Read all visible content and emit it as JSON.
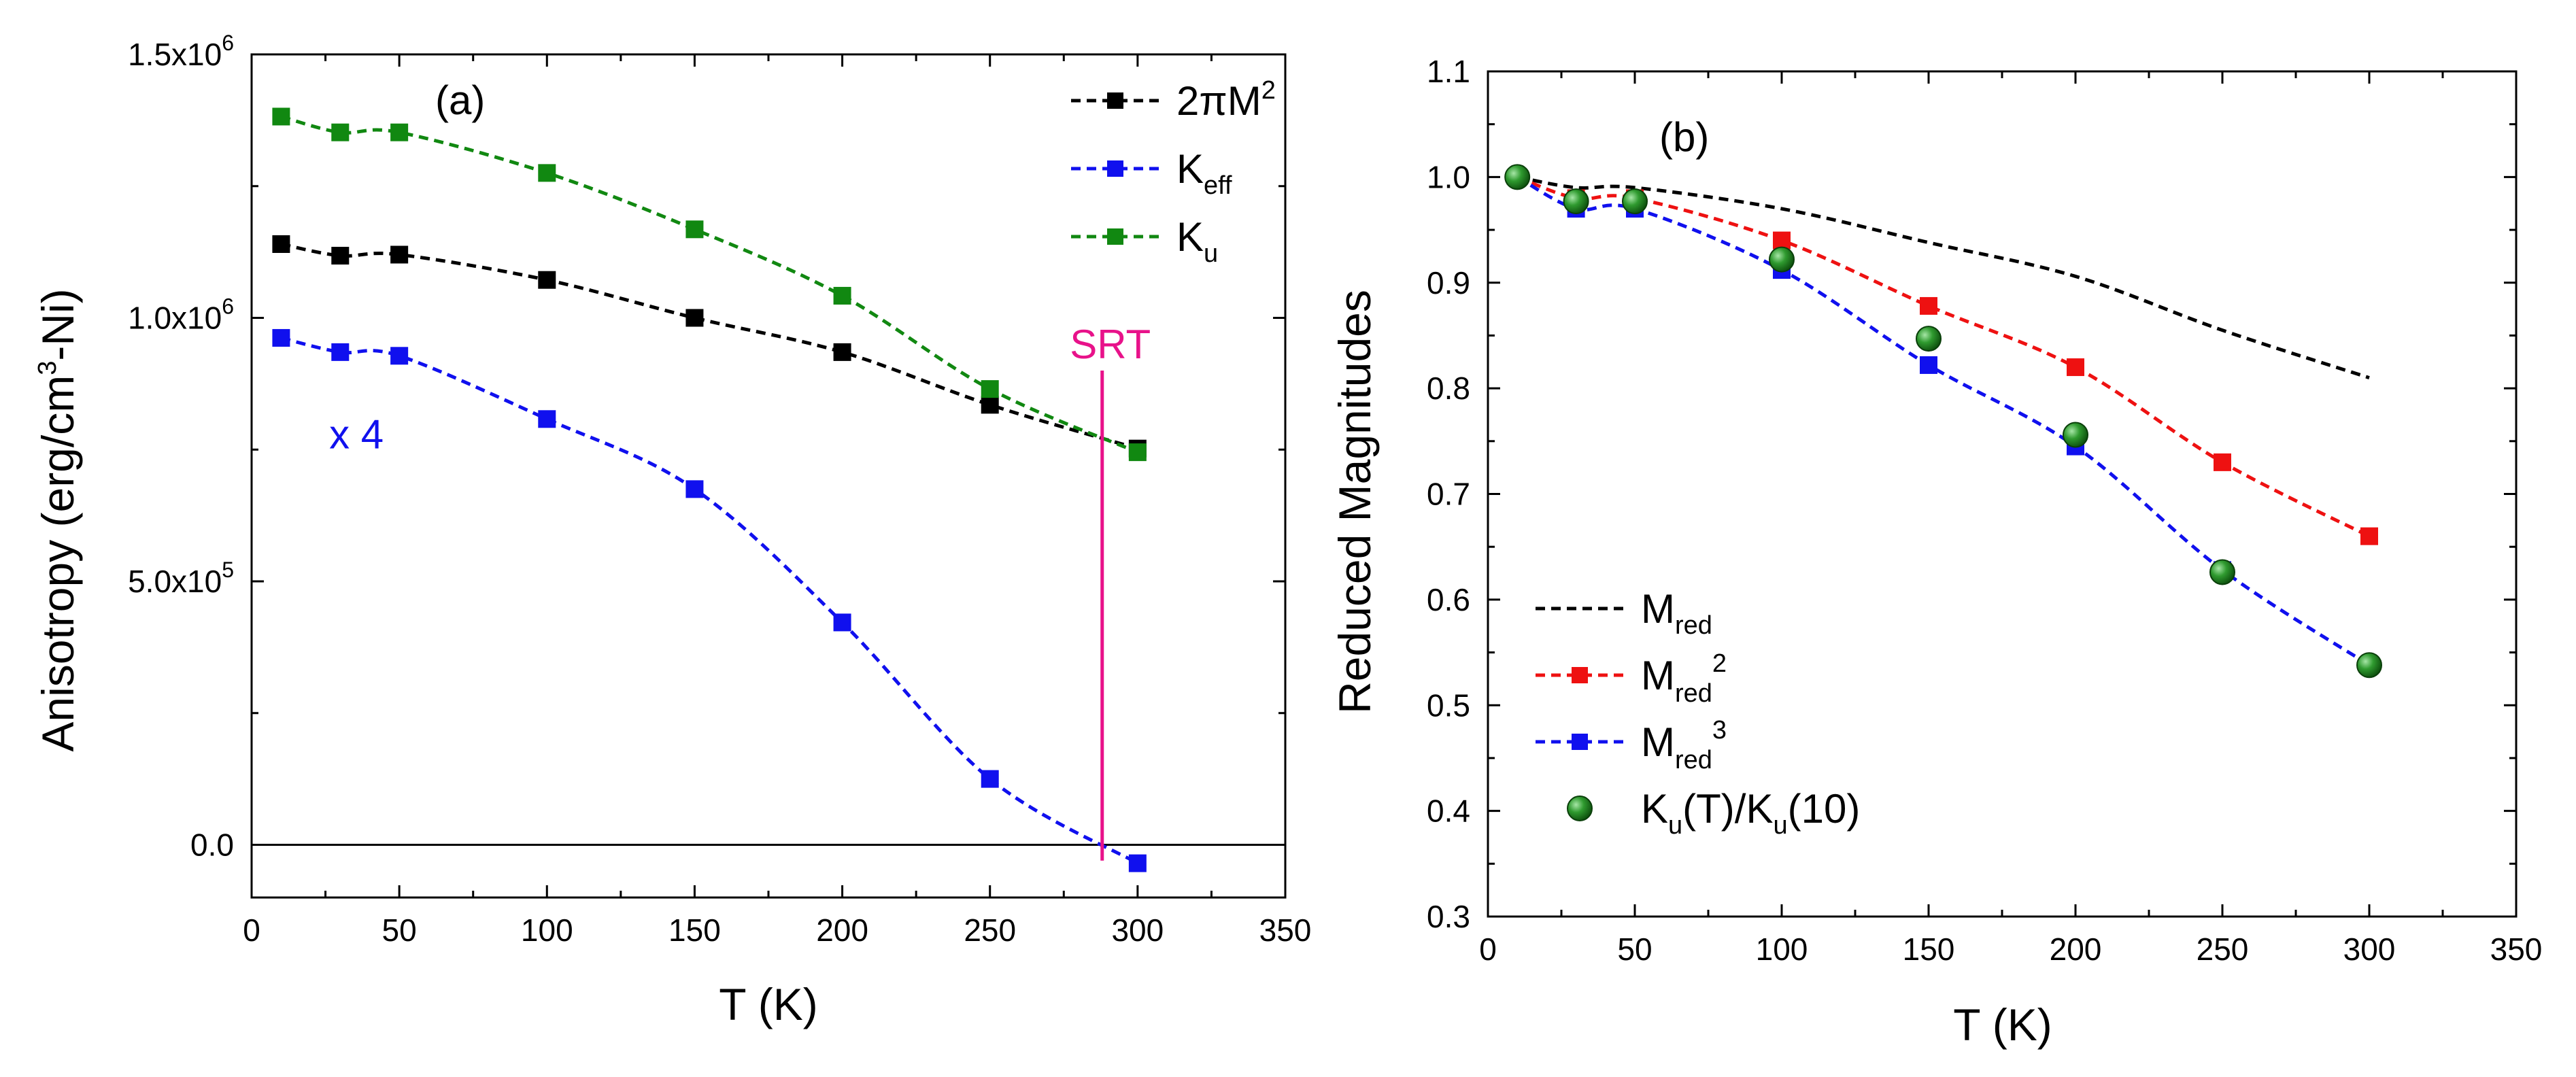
{
  "chart_data": [
    {
      "type": "line",
      "panel_label": "(a)",
      "xlabel": "T (K)",
      "ylabel": "Anisotropy (erg/cm3-Ni)",
      "ylabel_parts": {
        "pre": "Anisotropy (erg/cm",
        "sup": "3",
        "post": "-Ni)"
      },
      "xlim": [
        0,
        350
      ],
      "ylim": [
        -100000,
        1500000
      ],
      "x_ticks": [
        0,
        50,
        100,
        150,
        200,
        250,
        300,
        350
      ],
      "x_tick_labels": [
        "0",
        "50",
        "100",
        "150",
        "200",
        "250",
        "300",
        "350"
      ],
      "y_ticks": [
        0,
        500000,
        1000000,
        1500000
      ],
      "y_tick_labels": [
        {
          "base": "0.0",
          "exp": ""
        },
        {
          "base": "5.0x10",
          "exp": "5"
        },
        {
          "base": "1.0x10",
          "exp": "6"
        },
        {
          "base": "1.5x10",
          "exp": "6"
        }
      ],
      "series": [
        {
          "name": "2πM2",
          "legend": {
            "base": "2πM",
            "sup": "2",
            "sub": ""
          },
          "color": "#000000",
          "line_style": "dashed",
          "marker": "square",
          "x": [
            10,
            30,
            50,
            100,
            150,
            200,
            250,
            300
          ],
          "y": [
            1140000,
            1118000,
            1120000,
            1072000,
            1000000,
            935000,
            835000,
            752000
          ]
        },
        {
          "name": "Keff",
          "legend": {
            "base": "K",
            "sup": "",
            "sub": "eff"
          },
          "color": "#1010ee",
          "line_style": "dashed",
          "marker": "square",
          "x": [
            10,
            30,
            50,
            100,
            150,
            200,
            250,
            300
          ],
          "y": [
            962000,
            935000,
            928000,
            808000,
            675000,
            422000,
            125000,
            -35000
          ]
        },
        {
          "name": "Ku",
          "legend": {
            "base": "K",
            "sup": "",
            "sub": "u"
          },
          "color": "#118811",
          "line_style": "dashed",
          "marker": "square",
          "x": [
            10,
            30,
            50,
            100,
            150,
            200,
            250,
            300
          ],
          "y": [
            1382000,
            1352000,
            1352000,
            1275000,
            1168000,
            1042000,
            865000,
            745000
          ]
        }
      ],
      "annotations": [
        {
          "text": "SRT",
          "color": "#e8128a",
          "type": "vertical-line",
          "x": 288,
          "y_from": -30000,
          "y_to": 900000
        },
        {
          "text": "x 4",
          "color": "#1010ee",
          "x": 12,
          "y": 830000
        }
      ],
      "reference_line": {
        "y": 0,
        "color": "#000000"
      },
      "legend_position": "top-right"
    },
    {
      "type": "line",
      "panel_label": "(b)",
      "xlabel": "T (K)",
      "ylabel": "Reduced Magnitudes",
      "xlim": [
        0,
        350
      ],
      "ylim": [
        0.3,
        1.1
      ],
      "x_ticks": [
        0,
        50,
        100,
        150,
        200,
        250,
        300,
        350
      ],
      "x_tick_labels": [
        "0",
        "50",
        "100",
        "150",
        "200",
        "250",
        "300",
        "350"
      ],
      "y_ticks": [
        0.3,
        0.4,
        0.5,
        0.6,
        0.7,
        0.8,
        0.9,
        1.0,
        1.1
      ],
      "y_tick_labels": [
        "0.3",
        "0.4",
        "0.5",
        "0.6",
        "0.7",
        "0.8",
        "0.9",
        "1.0",
        "1.1"
      ],
      "series": [
        {
          "name": "Mred",
          "legend": {
            "base": "M",
            "sub": "red",
            "sup": ""
          },
          "color": "#000000",
          "line_style": "dashed",
          "marker": "none",
          "x": [
            10,
            30,
            50,
            100,
            150,
            200,
            250,
            300
          ],
          "y": [
            1.0,
            0.99,
            0.99,
            0.97,
            0.938,
            0.906,
            0.855,
            0.81
          ]
        },
        {
          "name": "Mred2",
          "legend": {
            "base": "M",
            "sub": "red",
            "sup": "2"
          },
          "color": "#ee1111",
          "line_style": "dashed",
          "marker": "square",
          "x": [
            10,
            30,
            50,
            100,
            150,
            200,
            250,
            300
          ],
          "y": [
            1.0,
            0.98,
            0.98,
            0.94,
            0.878,
            0.82,
            0.73,
            0.66
          ]
        },
        {
          "name": "Mred3",
          "legend": {
            "base": "M",
            "sub": "red",
            "sup": "3"
          },
          "color": "#1010ee",
          "line_style": "dashed",
          "marker": "square",
          "x": [
            10,
            30,
            50,
            100,
            150,
            200,
            250,
            300
          ],
          "y": [
            1.0,
            0.97,
            0.97,
            0.912,
            0.822,
            0.745,
            0.628,
            0.538
          ]
        },
        {
          "name": "Ku(T)/Ku(10)",
          "legend": {
            "parts": [
              "K",
              "u",
              "(T)/K",
              "u",
              "(10)"
            ]
          },
          "color": "#118811",
          "line_style": "none",
          "marker": "circle",
          "x": [
            10,
            30,
            50,
            100,
            150,
            200,
            250,
            300
          ],
          "y": [
            1.0,
            0.977,
            0.977,
            0.922,
            0.847,
            0.756,
            0.626,
            0.538
          ]
        }
      ],
      "legend_position": "bottom-left"
    }
  ]
}
